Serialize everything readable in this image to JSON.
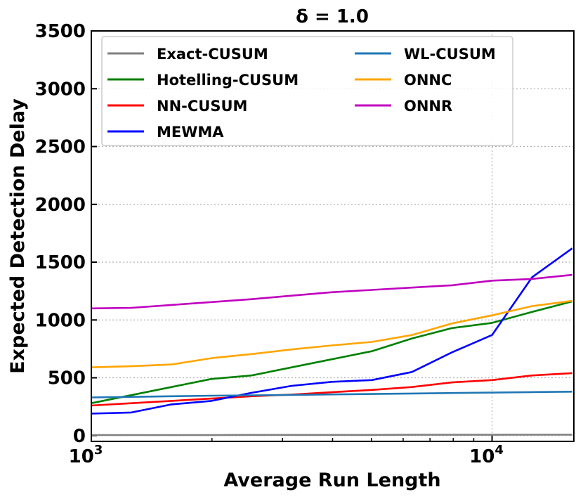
{
  "chart_data": {
    "type": "line",
    "title": "δ = 1.0",
    "xlabel": "Average Run Length",
    "ylabel": "Expected Detection Delay",
    "x_scale": "log",
    "xlim": [
      1000,
      16000
    ],
    "ylim": [
      -50,
      3500
    ],
    "yticks": [
      0,
      500,
      1000,
      1500,
      2000,
      2500,
      3000,
      3500
    ],
    "xticks": [
      {
        "value": 1000,
        "base": "10",
        "exp": "3"
      },
      {
        "value": 10000,
        "base": "10",
        "exp": "4"
      }
    ],
    "grid": true,
    "legend_position": "top-left",
    "x": [
      1000,
      1259,
      1585,
      1995,
      2512,
      3162,
      3981,
      5012,
      6310,
      7943,
      10000,
      12589,
      15849
    ],
    "series": [
      {
        "name": "Exact-CUSUM",
        "color": "#808080",
        "values": [
          5,
          5,
          5,
          5,
          6,
          6,
          6,
          6,
          7,
          7,
          7,
          8,
          8
        ]
      },
      {
        "name": "Hotelling-CUSUM",
        "color": "#008000",
        "values": [
          280,
          350,
          420,
          490,
          520,
          590,
          660,
          730,
          840,
          930,
          975,
          1070,
          1160
        ]
      },
      {
        "name": "NN-CUSUM",
        "color": "#ff0000",
        "values": [
          260,
          280,
          300,
          320,
          340,
          355,
          375,
          395,
          420,
          460,
          480,
          520,
          540
        ]
      },
      {
        "name": "MEWMA",
        "color": "#0000ff",
        "values": [
          190,
          200,
          270,
          300,
          370,
          430,
          465,
          480,
          550,
          720,
          870,
          1370,
          1620
        ]
      },
      {
        "name": "WL-CUSUM",
        "color": "#1f77b4",
        "values": [
          330,
          335,
          340,
          345,
          348,
          352,
          356,
          360,
          364,
          368,
          372,
          376,
          380
        ]
      },
      {
        "name": "ONNC",
        "color": "#ffa500",
        "values": [
          590,
          600,
          615,
          670,
          705,
          745,
          780,
          810,
          870,
          970,
          1040,
          1120,
          1165
        ]
      },
      {
        "name": "ONNR",
        "color": "#c000c0",
        "values": [
          1100,
          1105,
          1130,
          1155,
          1180,
          1210,
          1240,
          1260,
          1280,
          1300,
          1340,
          1355,
          1390
        ]
      }
    ]
  }
}
